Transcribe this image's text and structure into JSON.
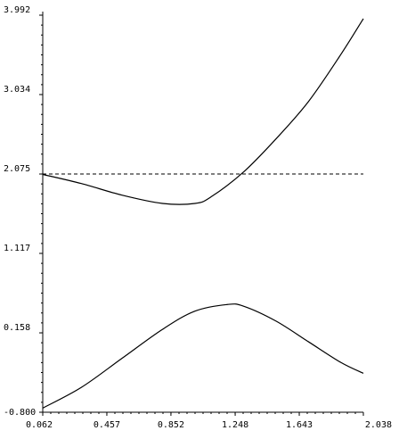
{
  "chart_data": {
    "type": "line",
    "title": "",
    "xlabel": "",
    "ylabel": "",
    "xlim": [
      0.062,
      2.038
    ],
    "ylim": [
      -0.8,
      3.992
    ],
    "grid": false,
    "x_ticks": [
      0.062,
      0.457,
      0.852,
      1.248,
      1.643,
      2.038
    ],
    "x_tick_labels": [
      "0.062",
      "0.457",
      "0.852",
      "1.248",
      "1.643",
      "2.038"
    ],
    "y_ticks": [
      3.992,
      3.034,
      2.075,
      1.117,
      0.158,
      -0.8
    ],
    "y_tick_labels": [
      "3.992",
      "3.034",
      "2.075",
      "1.117",
      "0.158",
      "-0.800"
    ],
    "series": [
      {
        "style": "solid",
        "x": [
          0.062,
          0.3,
          0.55,
          0.8,
          1.0,
          1.1,
          1.3,
          1.5,
          1.7,
          1.9,
          2.038
        ],
        "values": [
          2.07,
          1.96,
          1.82,
          1.72,
          1.72,
          1.8,
          2.1,
          2.5,
          2.95,
          3.52,
          3.95
        ]
      },
      {
        "style": "solid",
        "x": [
          0.062,
          0.3,
          0.55,
          0.8,
          1.0,
          1.2,
          1.3,
          1.5,
          1.7,
          1.9,
          2.038
        ],
        "values": [
          -0.75,
          -0.5,
          -0.15,
          0.2,
          0.42,
          0.5,
          0.48,
          0.3,
          0.05,
          -0.2,
          -0.33
        ]
      },
      {
        "style": "dashed",
        "x": [
          0.062,
          2.038
        ],
        "values": [
          2.075,
          2.075
        ]
      }
    ]
  }
}
